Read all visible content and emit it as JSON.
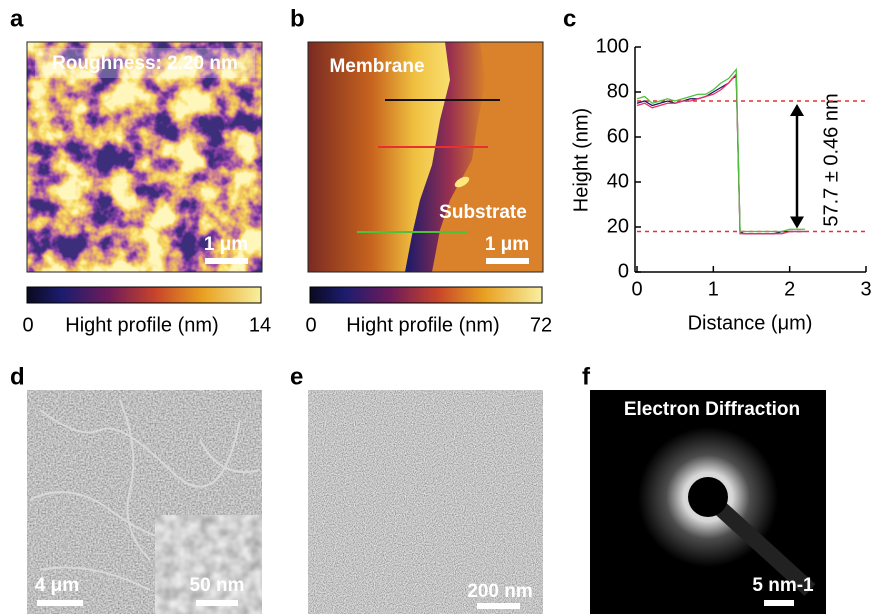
{
  "panels": {
    "a": {
      "label": "a",
      "annotation": "Roughness: 2.20 nm",
      "scale_bar": "1 μm",
      "colorbar": {
        "min": 0,
        "title": "Hight profile (nm)",
        "max": 14
      }
    },
    "b": {
      "label": "b",
      "region_top": "Membrane",
      "region_bottom": "Substrate",
      "scale_bar": "1 μm",
      "colorbar": {
        "min": 0,
        "title": "Hight profile (nm)",
        "max": 72
      }
    },
    "d": {
      "label": "d",
      "scale_bar": "4 μm",
      "inset_scale_bar": "50 nm"
    },
    "e": {
      "label": "e",
      "scale_bar": "200 nm"
    },
    "f": {
      "label": "f",
      "title": "Electron Diffraction",
      "scale_bar": "5 nm-1"
    }
  },
  "chart_data": {
    "type": "line",
    "panel_label": "c",
    "x_label": "Distance (μm)",
    "y_label": "Height (nm)",
    "xlim": [
      0,
      3
    ],
    "ylim": [
      0,
      100
    ],
    "xticks": [
      0,
      1,
      2,
      3
    ],
    "yticks": [
      0,
      20,
      40,
      60,
      80,
      100
    ],
    "x": [
      0,
      0.1,
      0.2,
      0.3,
      0.4,
      0.5,
      0.6,
      0.7,
      0.8,
      0.9,
      1.0,
      1.1,
      1.2,
      1.25,
      1.3,
      1.35,
      1.4,
      1.5,
      1.6,
      1.7,
      1.8,
      1.9,
      2.0,
      2.1,
      2.2
    ],
    "series": [
      {
        "color": "#1a1a66",
        "values": [
          75,
          76,
          74,
          75,
          76,
          75,
          76,
          77,
          77,
          78,
          80,
          82,
          84,
          86,
          87,
          18,
          17,
          17,
          17,
          17,
          17,
          18,
          18,
          18,
          18
        ]
      },
      {
        "color": "#e8306a",
        "values": [
          74,
          75,
          73,
          74,
          75,
          75,
          76,
          76,
          77,
          78,
          79,
          81,
          84,
          86,
          88,
          17,
          17,
          17,
          17,
          17,
          17,
          17,
          18,
          18,
          18
        ]
      },
      {
        "color": "#4cc23a",
        "values": [
          77,
          78,
          75,
          76,
          77,
          76,
          77,
          78,
          79,
          79,
          81,
          84,
          86,
          88,
          90,
          18,
          18,
          18,
          18,
          18,
          18,
          18,
          19,
          19,
          19
        ]
      }
    ],
    "reference_lines": {
      "color": "#e83030",
      "values": [
        76,
        18
      ]
    },
    "annotation": "57.7 ± 0.46 nm"
  }
}
